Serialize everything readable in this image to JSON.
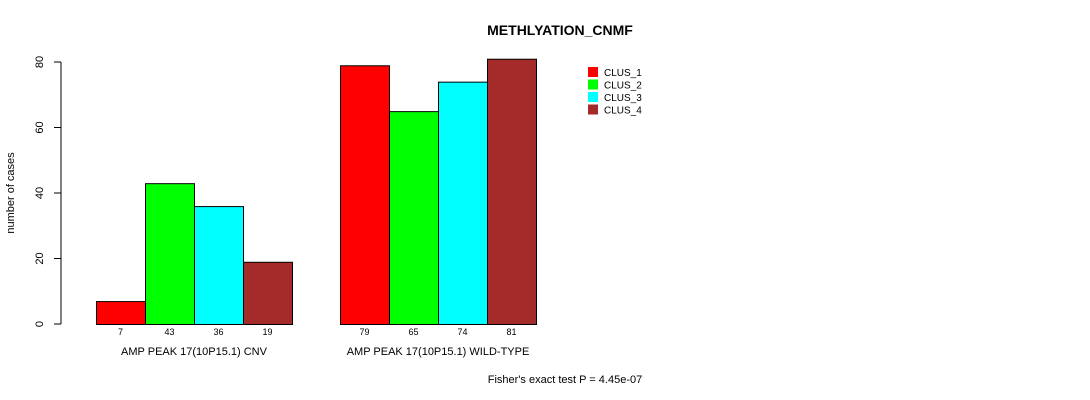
{
  "chart_data": {
    "type": "bar",
    "title": "METHLYATION_CNMF",
    "ylabel": "number of cases",
    "xlabel": "",
    "ylim": [
      0,
      80
    ],
    "yticks": [
      0,
      20,
      40,
      60,
      80
    ],
    "categories": [
      "AMP PEAK 17(10P15.1) CNV",
      "AMP PEAK 17(10P15.1) WILD-TYPE"
    ],
    "series": [
      {
        "name": "CLUS_1",
        "color": "#ff0000",
        "values": [
          7,
          79
        ]
      },
      {
        "name": "CLUS_2",
        "color": "#00ff00",
        "values": [
          43,
          65
        ]
      },
      {
        "name": "CLUS_3",
        "color": "#00ffff",
        "values": [
          36,
          74
        ]
      },
      {
        "name": "CLUS_4",
        "color": "#a52a2a",
        "values": [
          19,
          81
        ]
      }
    ],
    "legend_position": "top-right",
    "grid": false,
    "footnote": "Fisher's exact test P = 4.45e-07"
  }
}
